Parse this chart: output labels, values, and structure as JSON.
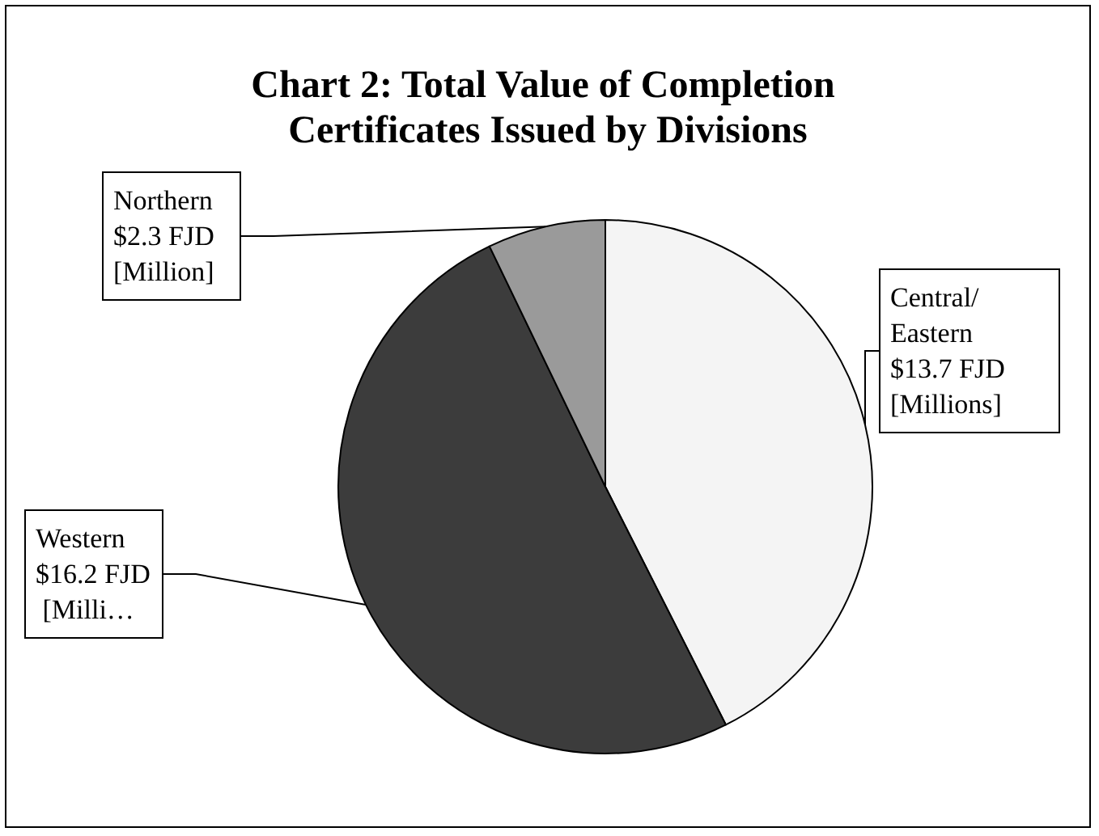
{
  "chart_data": {
    "type": "pie",
    "title": "Chart 2: Total Value of Completion Certificates Issued by Divisions",
    "categories": [
      "Central/ Eastern",
      "Western",
      "Northern"
    ],
    "values": [
      13.7,
      16.2,
      2.3
    ],
    "value_labels": [
      "$13.7 FJD [Millions]",
      "$16.2 FJD [Milli…",
      "$2.3 FJD [Million]"
    ],
    "colors": [
      "#f4f4f4",
      "#3c3c3c",
      "#9a9a9a"
    ],
    "legend": false
  }
}
